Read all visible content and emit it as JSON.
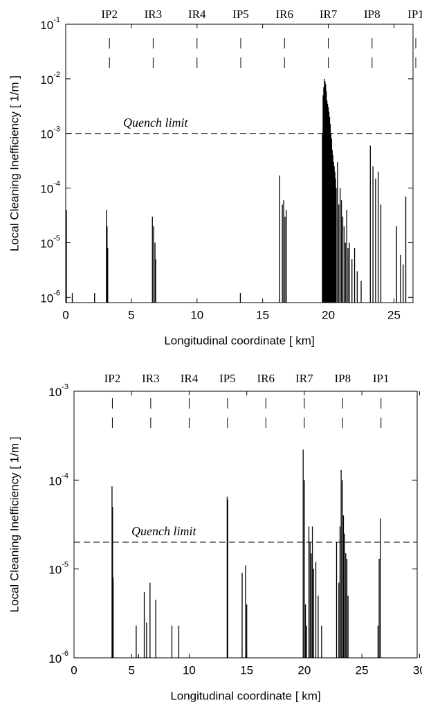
{
  "chart_data": [
    {
      "type": "spike",
      "xlabel": "Longitudinal coordinate [ km]",
      "ylabel": "Local Cleaning Inefficiency [ 1/m ]",
      "log_y": true,
      "color": "#000000",
      "xlim": [
        0,
        26.45
      ],
      "ylim": [
        8e-07,
        0.1
      ],
      "xticks": [
        0,
        5,
        10,
        15,
        20,
        25
      ],
      "yticks": [
        {
          "value": 0.1,
          "label": "10-1"
        },
        {
          "value": 0.01,
          "label": "10-2"
        },
        {
          "value": 0.001,
          "label": "10-3"
        },
        {
          "value": 0.0001,
          "label": "10-4"
        },
        {
          "value": 1e-05,
          "label": "10-5"
        },
        {
          "value": 1e-06,
          "label": "10-6"
        }
      ],
      "markers": [
        {
          "label": "IP2",
          "x": 3.33
        },
        {
          "label": "IR3",
          "x": 6.66
        },
        {
          "label": "IR4",
          "x": 10
        },
        {
          "label": "IP5",
          "x": 13.33
        },
        {
          "label": "IR6",
          "x": 16.66
        },
        {
          "label": "IR7",
          "x": 20
        },
        {
          "label": "IP8",
          "x": 23.33
        },
        {
          "label": "IP1",
          "x": 26.66
        }
      ],
      "threshold": {
        "label": "Quench limit",
        "value": 0.001
      },
      "x": [
        0.05,
        0.5,
        2.2,
        3.1,
        3.15,
        3.2,
        6.6,
        6.7,
        6.8,
        6.85,
        13.3,
        16.3,
        16.5,
        16.6,
        16.7,
        16.8,
        19.55,
        19.6,
        19.65,
        19.7,
        19.75,
        19.8,
        19.85,
        19.9,
        19.95,
        20.0,
        20.05,
        20.1,
        20.15,
        20.2,
        20.25,
        20.3,
        20.35,
        20.4,
        20.45,
        20.5,
        20.55,
        20.6,
        20.7,
        20.8,
        20.9,
        21.0,
        21.1,
        21.2,
        21.3,
        21.4,
        21.5,
        21.6,
        21.8,
        22.0,
        22.2,
        22.5,
        23.2,
        23.4,
        23.6,
        23.8,
        24.0,
        25.2,
        25.5,
        25.7,
        25.9
      ],
      "values": [
        4e-05,
        1.2e-06,
        1.2e-06,
        4e-05,
        2e-05,
        8e-06,
        3e-05,
        2e-05,
        1e-05,
        5e-06,
        1.2e-06,
        0.00017,
        5e-05,
        6e-05,
        3e-05,
        4e-05,
        0.001,
        0.005,
        0.007,
        0.01,
        0.009,
        0.008,
        0.006,
        0.004,
        0.0035,
        0.003,
        0.0025,
        0.002,
        0.0015,
        0.001,
        0.0008,
        0.0005,
        0.0004,
        0.0003,
        0.00025,
        0.0002,
        0.00015,
        0.0001,
        0.0003,
        5e-05,
        0.0001,
        6e-05,
        3e-05,
        2e-05,
        1e-05,
        4e-05,
        8e-06,
        1e-05,
        5e-06,
        8e-06,
        3e-06,
        2e-06,
        0.0006,
        0.00025,
        0.00015,
        0.0002,
        5e-05,
        2e-05,
        6e-06,
        4e-06,
        7e-05
      ]
    },
    {
      "type": "spike",
      "xlabel": "Longitudinal coordinate [ km]",
      "ylabel": "Local Cleaning Inefficiency [ 1/m ]",
      "log_y": true,
      "color": "#000000",
      "xlim": [
        0,
        29.8
      ],
      "ylim": [
        1e-06,
        0.001
      ],
      "xticks": [
        0,
        5,
        10,
        15,
        20,
        25,
        30
      ],
      "yticks": [
        {
          "value": 0.001,
          "label": "10-3"
        },
        {
          "value": 0.0001,
          "label": "10-4"
        },
        {
          "value": 1e-05,
          "label": "10-5"
        },
        {
          "value": 1e-06,
          "label": "10-6"
        }
      ],
      "markers": [
        {
          "label": "IP2",
          "x": 3.33
        },
        {
          "label": "IR3",
          "x": 6.66
        },
        {
          "label": "IR4",
          "x": 10
        },
        {
          "label": "IP5",
          "x": 13.33
        },
        {
          "label": "IR6",
          "x": 16.66
        },
        {
          "label": "IR7",
          "x": 20
        },
        {
          "label": "IP8",
          "x": 23.33
        },
        {
          "label": "IP1",
          "x": 26.66
        }
      ],
      "threshold": {
        "label": "Quench limit",
        "value": 2e-05
      },
      "x": [
        3.3,
        3.35,
        3.4,
        5.4,
        5.6,
        6.1,
        6.3,
        6.6,
        7.1,
        8.5,
        9.1,
        13.3,
        13.35,
        14.6,
        14.9,
        15.0,
        19.9,
        20.0,
        20.1,
        20.2,
        20.4,
        20.5,
        20.6,
        20.7,
        20.8,
        21.0,
        21.2,
        21.5,
        22.8,
        23.0,
        23.1,
        23.2,
        23.3,
        23.4,
        23.5,
        23.6,
        23.7,
        23.8,
        26.4,
        26.5,
        26.6
      ],
      "values": [
        8.5e-05,
        5e-05,
        8e-06,
        2.3e-06,
        1.1e-06,
        5.5e-06,
        2.5e-06,
        7e-06,
        4.5e-06,
        2.3e-06,
        2.3e-06,
        6.5e-05,
        6e-05,
        9e-06,
        1.1e-05,
        4e-06,
        0.00022,
        0.0001,
        4e-06,
        2.3e-06,
        3e-05,
        2e-05,
        1.5e-05,
        3e-05,
        1e-05,
        1.2e-05,
        5e-06,
        2.3e-06,
        2e-05,
        7e-06,
        3e-05,
        0.00013,
        0.0001,
        4e-05,
        2.5e-05,
        1.5e-05,
        1.3e-05,
        5e-06,
        2.3e-06,
        1.3e-05,
        3.7e-05
      ]
    }
  ]
}
